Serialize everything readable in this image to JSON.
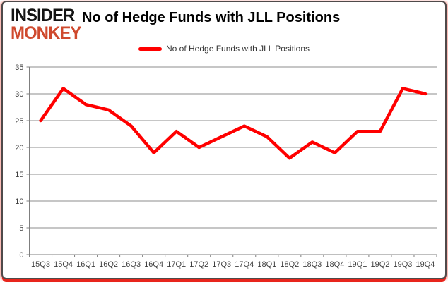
{
  "logo": {
    "line1": "INSIDER",
    "line2": "MONKEY"
  },
  "header": {
    "title": "No of Hedge Funds with JLL Positions"
  },
  "legend": {
    "label": "No of Hedge Funds with JLL Positions"
  },
  "colors": {
    "series": "#ff0000",
    "gridline": "#8c8c8c",
    "axis_line": "#7f7f7f",
    "axis_text": "#3f3f3f",
    "logo_black": "#141414",
    "logo_red": "#cf4a2e",
    "card_border": "#4f4a4a",
    "accent_bar": "#e8251c"
  },
  "chart_data": {
    "type": "line",
    "title": "No of Hedge Funds with JLL Positions",
    "categories": [
      "15Q3",
      "15Q4",
      "16Q1",
      "16Q2",
      "16Q3",
      "16Q4",
      "17Q1",
      "17Q2",
      "17Q3",
      "17Q4",
      "18Q1",
      "18Q2",
      "18Q3",
      "18Q4",
      "19Q1",
      "19Q2",
      "19Q3",
      "19Q4"
    ],
    "series": [
      {
        "name": "No of Hedge Funds with JLL Positions",
        "values": [
          25,
          31,
          28,
          27,
          24,
          19,
          23,
          20,
          22,
          24,
          22,
          18,
          21,
          19,
          23,
          23,
          31,
          30
        ]
      }
    ],
    "xlabel": "",
    "ylabel": "",
    "ylim": [
      0,
      35
    ],
    "y_ticks": [
      0,
      5,
      10,
      15,
      20,
      25,
      30,
      35
    ],
    "grid": true,
    "legend_position": "top-center"
  }
}
